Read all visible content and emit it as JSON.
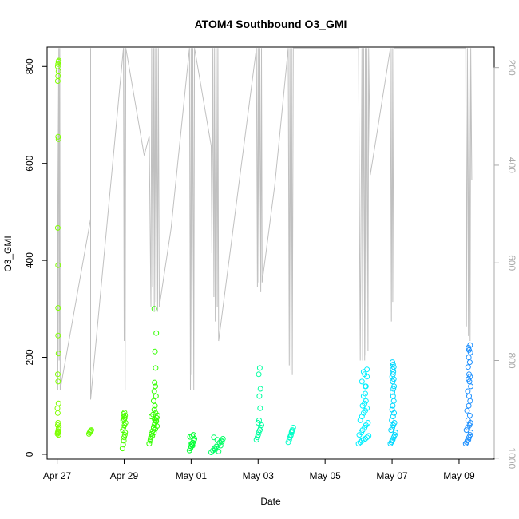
{
  "chart_data": {
    "type": "scatter",
    "title": "ATOM4 Southbound O3_GMI",
    "xlabel": "Date",
    "ylabel": "O3_GMI",
    "x_ticks": [
      "Apr 27",
      "Apr 29",
      "May 01",
      "May 03",
      "May 05",
      "May 07",
      "May 09"
    ],
    "x_tick_days": [
      0,
      2,
      4,
      6,
      8,
      10,
      12
    ],
    "xlim_days": [
      -0.3,
      13.05
    ],
    "ylim": [
      -10,
      840
    ],
    "y_ticks": [
      0,
      200,
      400,
      600,
      800
    ],
    "y2_ticks": [
      200,
      400,
      600,
      800,
      1000
    ],
    "y2lim": [
      1002,
      158
    ],
    "series": [
      {
        "color": "#7fff00",
        "x": [
          0.01,
          0.02,
          0.03,
          0.04,
          0.05,
          0.02,
          0.03,
          0.04,
          0.03,
          0.02,
          0.01,
          0.04,
          0.03,
          0.02,
          0.04,
          0.03,
          0.03,
          0.03,
          0.02,
          0.04,
          0.03,
          0.02,
          0.03,
          0.04,
          0.02,
          0.03,
          0.04,
          0.05
        ],
        "y": [
          42,
          45,
          48,
          52,
          56,
          60,
          65,
          40,
          44,
          85,
          95,
          105,
          150,
          165,
          208,
          245,
          302,
          390,
          467,
          650,
          655,
          770,
          780,
          790,
          800,
          805,
          810,
          812
        ]
      },
      {
        "color": "#66ff00",
        "x": [
          0.95,
          0.97,
          0.99,
          1.0,
          1.02
        ],
        "y": [
          42,
          45,
          47,
          49,
          50
        ]
      },
      {
        "color": "#4cff00",
        "x": [
          1.95,
          1.97,
          1.99,
          2.0,
          2.02,
          2.03,
          1.96,
          1.98,
          2.01,
          2.04,
          1.97,
          2.0,
          2.02,
          1.99,
          2.03,
          1.98,
          2.01
        ],
        "y": [
          12,
          20,
          28,
          35,
          40,
          45,
          50,
          55,
          60,
          65,
          70,
          72,
          75,
          78,
          80,
          83,
          86
        ]
      },
      {
        "color": "#33ff00",
        "x": [
          2.75,
          2.78,
          2.8,
          2.82,
          2.85,
          2.88,
          2.9,
          2.92,
          2.95,
          2.97,
          3.0,
          2.79,
          2.84,
          2.89,
          2.93,
          2.98,
          2.81,
          2.86,
          2.91,
          2.96,
          2.94,
          2.9,
          2.92,
          2.88,
          2.95,
          2.9,
          2.93,
          2.91,
          2.94,
          2.92,
          2.96,
          2.9
        ],
        "y": [
          22,
          28,
          35,
          42,
          48,
          55,
          60,
          65,
          70,
          75,
          80,
          32,
          38,
          45,
          52,
          58,
          78,
          82,
          72,
          68,
          85,
          92,
          100,
          110,
          120,
          130,
          140,
          148,
          178,
          212,
          250,
          300
        ]
      },
      {
        "color": "#00ff33",
        "x": [
          3.95,
          3.98,
          4.0,
          4.02,
          4.05,
          4.08,
          4.1,
          3.97,
          4.03,
          4.07,
          4.01,
          4.04
        ],
        "y": [
          8,
          12,
          16,
          20,
          24,
          28,
          32,
          36,
          38,
          40,
          22,
          18
        ]
      },
      {
        "color": "#00ff66",
        "x": [
          4.6,
          4.65,
          4.7,
          4.75,
          4.8,
          4.85,
          4.9,
          4.95,
          4.68,
          4.78,
          4.88,
          4.72,
          4.82,
          4.92
        ],
        "y": [
          4,
          8,
          12,
          16,
          20,
          24,
          28,
          32,
          35,
          30,
          18,
          10,
          6,
          26
        ]
      },
      {
        "color": "#00ffa0",
        "x": [
          5.95,
          5.98,
          6.0,
          6.02,
          6.05,
          6.08,
          6.1,
          6.0,
          6.03,
          6.06,
          6.04,
          6.07,
          6.02,
          6.05
        ],
        "y": [
          30,
          35,
          40,
          45,
          50,
          55,
          60,
          65,
          70,
          95,
          120,
          135,
          165,
          178
        ]
      },
      {
        "color": "#00ffc8",
        "x": [
          6.9,
          6.93,
          6.95,
          6.98,
          7.0,
          7.02,
          7.05,
          6.97,
          7.01
        ],
        "y": [
          25,
          30,
          35,
          40,
          45,
          50,
          55,
          38,
          48
        ]
      },
      {
        "color": "#00f0ff",
        "x": [
          9.0,
          9.05,
          9.1,
          9.15,
          9.2,
          9.25,
          9.3,
          9.02,
          9.08,
          9.12,
          9.18,
          9.22,
          9.28,
          9.05,
          9.1,
          9.15,
          9.2,
          9.25,
          9.12,
          9.18,
          9.22,
          9.15,
          9.2,
          9.1,
          9.25,
          9.18,
          9.22,
          9.2,
          9.15,
          9.25
        ],
        "y": [
          22,
          25,
          28,
          30,
          32,
          35,
          38,
          40,
          45,
          50,
          55,
          60,
          65,
          70,
          78,
          85,
          90,
          95,
          100,
          105,
          110,
          120,
          140,
          150,
          160,
          165,
          140,
          125,
          170,
          175
        ]
      },
      {
        "color": "#00d8ff",
        "x": [
          9.95,
          9.98,
          10.0,
          10.02,
          10.05,
          10.08,
          10.1,
          9.97,
          10.01,
          10.04,
          10.07,
          9.99,
          10.03,
          10.06,
          10.0,
          10.02,
          10.05,
          10.03,
          10.01,
          10.04,
          10.06,
          10.02,
          10.05,
          10.0,
          10.03,
          10.04,
          10.02,
          10.05,
          10.03,
          10.01
        ],
        "y": [
          22,
          25,
          28,
          30,
          35,
          40,
          45,
          50,
          55,
          60,
          65,
          70,
          78,
          85,
          92,
          100,
          110,
          120,
          128,
          135,
          140,
          150,
          155,
          160,
          165,
          170,
          175,
          180,
          185,
          190
        ]
      },
      {
        "color": "#1e90ff",
        "x": [
          12.2,
          12.23,
          12.25,
          12.28,
          12.3,
          12.33,
          12.35,
          12.22,
          12.26,
          12.31,
          12.34,
          12.27,
          12.32,
          12.24,
          12.29,
          12.33,
          12.3,
          12.26,
          12.35,
          12.31,
          12.28,
          12.33,
          12.3,
          12.27,
          12.32,
          12.29,
          12.34,
          12.3,
          12.28,
          12.33
        ],
        "y": [
          22,
          25,
          28,
          30,
          35,
          40,
          45,
          50,
          55,
          60,
          65,
          70,
          80,
          90,
          100,
          110,
          120,
          130,
          140,
          150,
          155,
          160,
          165,
          180,
          190,
          200,
          210,
          215,
          220,
          225
        ]
      }
    ],
    "line_series": {
      "color": "#c0c0c0",
      "y2_values_note": "pressure trace (secondary axis, reversed)",
      "x": [
        0.0,
        0.02,
        0.03,
        0.05,
        0.06,
        0.08,
        0.09,
        1.0,
        1.0,
        1.0,
        1.98,
        2.0,
        2.02,
        2.03,
        2.05,
        2.6,
        2.75,
        2.8,
        2.82,
        2.85,
        2.88,
        2.9,
        2.92,
        2.95,
        2.97,
        3.0,
        3.02,
        3.05,
        3.4,
        3.95,
        3.98,
        4.0,
        4.02,
        4.05,
        4.08,
        4.1,
        4.6,
        4.62,
        4.65,
        4.68,
        4.7,
        4.72,
        4.75,
        4.78,
        4.8,
        4.82,
        5.95,
        5.98,
        6.0,
        6.02,
        6.05,
        6.08,
        6.1,
        6.12,
        6.5,
        6.9,
        6.93,
        6.95,
        6.98,
        7.0,
        7.02,
        7.05,
        9.0,
        9.05,
        9.1,
        9.12,
        9.15,
        9.18,
        9.2,
        9.22,
        9.25,
        9.28,
        9.3,
        9.35,
        9.95,
        9.98,
        10.0,
        10.02,
        10.05,
        12.2,
        12.22,
        12.25,
        12.28,
        12.3,
        12.33,
        12.35,
        12.38
      ],
      "y2": [
        200,
        860,
        510,
        160,
        800,
        160,
        860,
        510,
        160,
        880,
        160,
        760,
        160,
        860,
        160,
        380,
        340,
        690,
        160,
        650,
        160,
        700,
        160,
        680,
        160,
        700,
        160,
        690,
        530,
        160,
        860,
        160,
        830,
        160,
        860,
        160,
        360,
        580,
        160,
        670,
        160,
        720,
        160,
        690,
        160,
        760,
        160,
        650,
        160,
        640,
        160,
        660,
        160,
        640,
        440,
        160,
        810,
        160,
        820,
        160,
        830,
        160,
        160,
        800,
        160,
        800,
        160,
        800,
        160,
        790,
        160,
        780,
        160,
        420,
        160,
        720,
        160,
        680,
        160,
        160,
        730,
        160,
        750,
        160,
        760,
        160,
        430
      ]
    }
  }
}
